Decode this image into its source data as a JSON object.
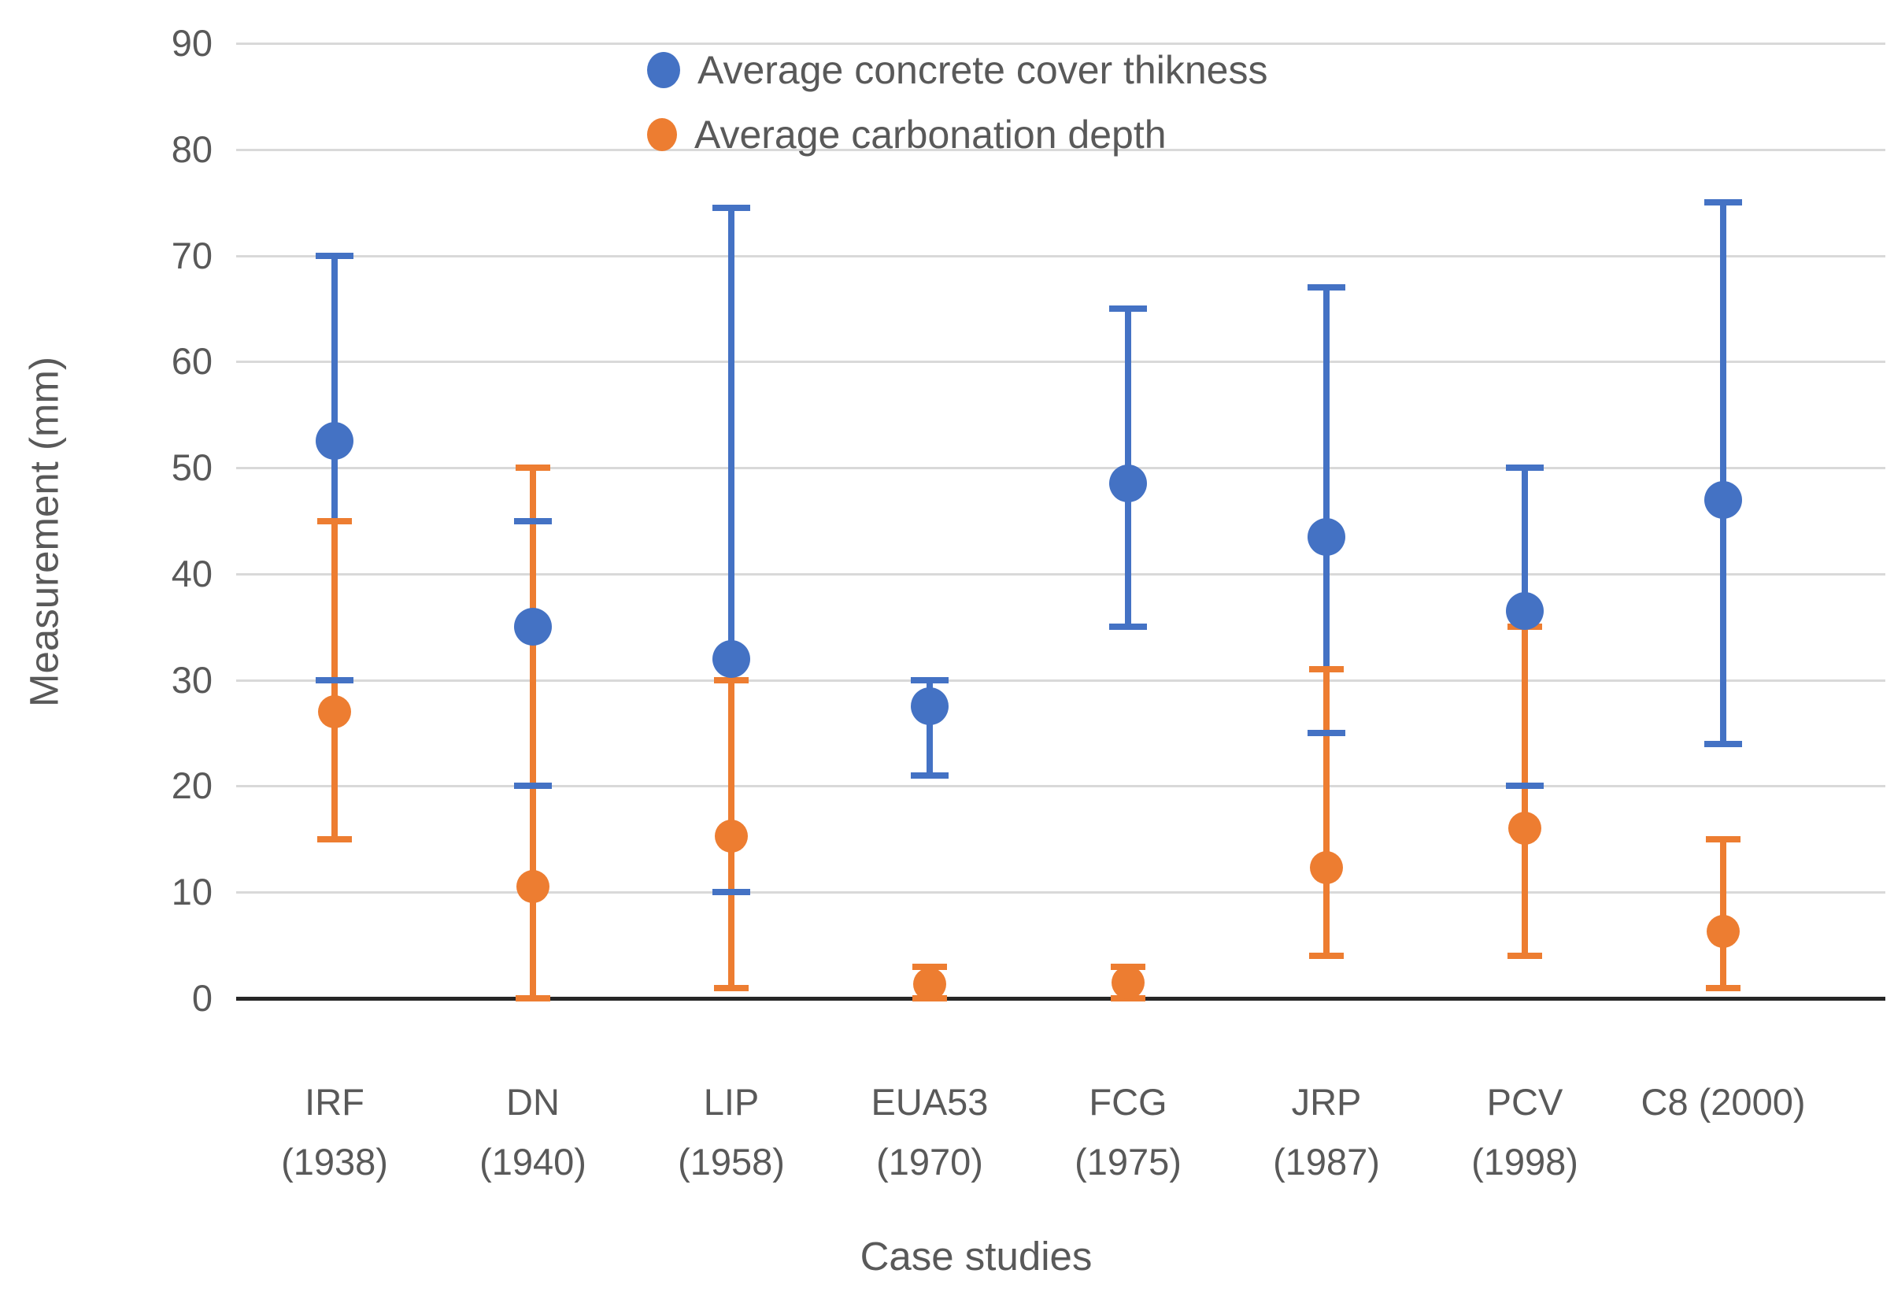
{
  "chart_data": {
    "type": "scatter",
    "title": "",
    "xlabel": "Case studies",
    "ylabel": "Measurement (mm)",
    "ylim": [
      0,
      90
    ],
    "ytick_step": 10,
    "yticks": [
      0,
      10,
      20,
      30,
      40,
      50,
      60,
      70,
      80,
      90
    ],
    "grid": true,
    "legend_position": "top-center",
    "gridline_color": "#d9d9d9",
    "axis_line_color": "#262626",
    "axis_text_color": "#595959",
    "categories": [
      "IRF (1938)",
      "DN (1940)",
      "LIP (1958)",
      "EUA53 (1970)",
      "FCG (1975)",
      "JRP (1987)",
      "PCV (1998)",
      "C8 (2000)"
    ],
    "category_label_lines": [
      [
        "IRF",
        "(1938)"
      ],
      [
        "DN",
        "(1940)"
      ],
      [
        "LIP",
        "(1958)"
      ],
      [
        "EUA53",
        "(1970)"
      ],
      [
        "FCG",
        "(1975)"
      ],
      [
        "JRP",
        "(1987)"
      ],
      [
        "PCV",
        "(1998)"
      ],
      [
        "C8 (2000)"
      ]
    ],
    "series": [
      {
        "name": "Average concrete cover thikness",
        "color": "#4472C4",
        "marker": "circle",
        "values": [
          52.5,
          35,
          32,
          27.5,
          48.5,
          43.5,
          36.5,
          47
        ],
        "err_low": [
          30,
          20,
          10,
          21,
          35,
          25,
          20,
          24
        ],
        "err_high": [
          70,
          45,
          74.5,
          30,
          65,
          67,
          50,
          75
        ]
      },
      {
        "name": "Average carbonation depth",
        "color": "#ED7D31",
        "marker": "circle",
        "values": [
          27,
          10.5,
          15.3,
          1.3,
          1.5,
          12.3,
          16,
          6.3
        ],
        "err_low": [
          15,
          0,
          1,
          0,
          0,
          4,
          4,
          1
        ],
        "err_high": [
          45,
          50,
          30,
          3,
          3,
          31,
          35,
          15
        ]
      }
    ]
  }
}
